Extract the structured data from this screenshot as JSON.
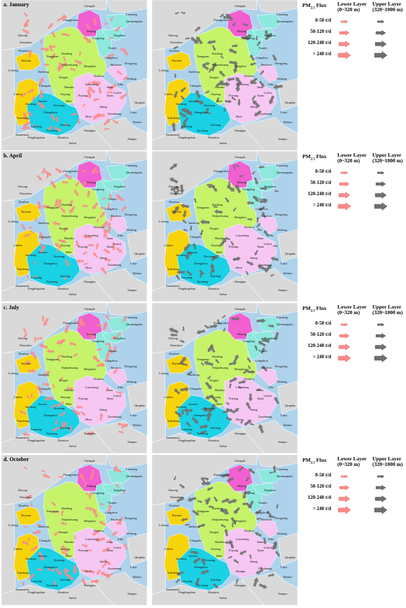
{
  "panels": [
    {
      "title": "a. January"
    },
    {
      "title": "b. April"
    },
    {
      "title": "c. July"
    },
    {
      "title": "d. October"
    }
  ],
  "legend": {
    "title_main": "PM",
    "title_sub": "2.5",
    "title_end": " Flux",
    "lower_layer": "Lower Layer",
    "lower_range": "(0~320 m)",
    "upper_layer": "Upper Layer",
    "upper_range": "(320~1000 m)",
    "classes": [
      {
        "label": "0-50 t/d",
        "level": 1
      },
      {
        "label": "50-120 t/d",
        "level": 2
      },
      {
        "label": "120-240 t/d",
        "level": 3
      },
      {
        "label": "> 240 t/d",
        "level": 4
      }
    ]
  },
  "colors": {
    "sea": "#aed2ec",
    "land_outside": "#d9d9d9",
    "beijing": "#f15fd0",
    "tianjin": "#8ee8de",
    "hebei": "#c6f36a",
    "shanxi": "#f7d40a",
    "henan": "#1ad1e5",
    "shandong": "#f5c7f2",
    "lower_arrow": "#f98a8a",
    "upper_arrow": "#6f6f6f"
  },
  "cities": [
    "Chengde",
    "Zhangjiakou",
    "Beijing",
    "Qinhuangdao",
    "Tangshan",
    "Langfang",
    "Tianjin",
    "Datong",
    "Shuozhou",
    "Baoding",
    "Cangzhou",
    "Xinzhou",
    "Shijiazhuang",
    "Hengshui",
    "Binzhou",
    "Dongying",
    "Taiyuan",
    "Yangquan",
    "Dezhou",
    "Weifang",
    "Lvliang",
    "Jinzhong",
    "Xingtai",
    "Liaocheng",
    "Jinan",
    "Zibo",
    "Changzhi",
    "Handan",
    "Taian",
    "Laiwu",
    "Linfen",
    "Jincheng",
    "Anyang",
    "Puyang",
    "Jining",
    "Zaozhuang",
    "Linyi",
    "Rizhao",
    "Yuncheng",
    "Jiaozuo",
    "Xinxiang",
    "Hebi",
    "Heze",
    "Kaifeng",
    "Zhengzhou",
    "Luoyang",
    "Sanmenxia",
    "Xuchang",
    "Shangqiu",
    "Pingdingshan",
    "Zhoukou",
    "Anhui",
    "Jiangsu",
    "Liaoning",
    "Qingdao"
  ]
}
